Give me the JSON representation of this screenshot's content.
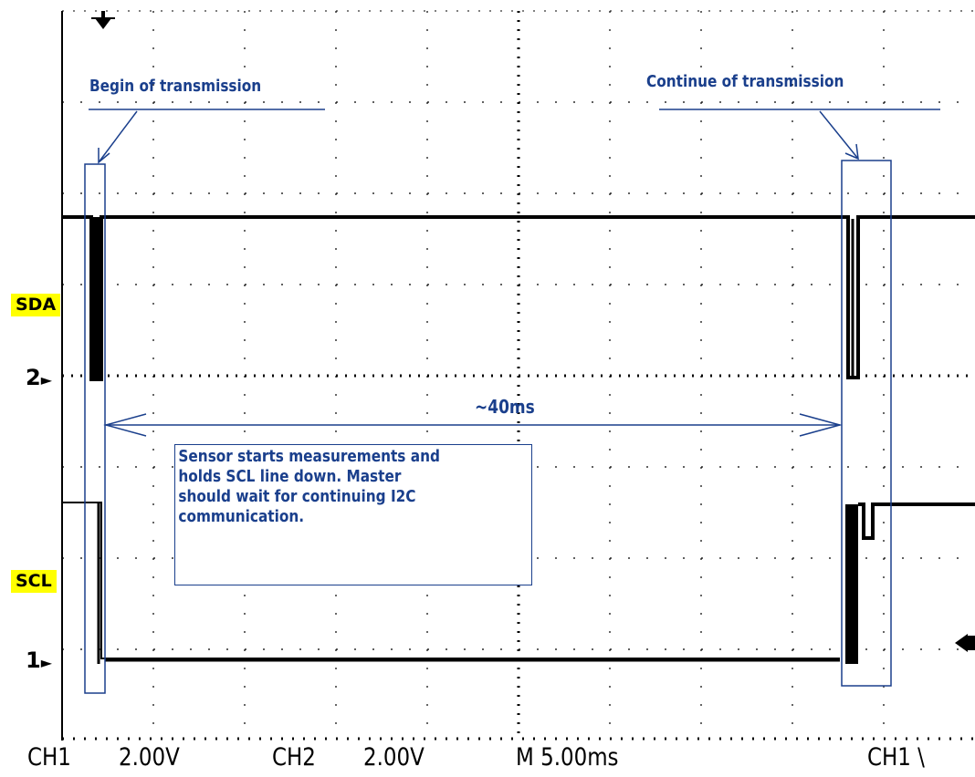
{
  "annotations": {
    "begin": "Begin of transmission",
    "continue": "Continue of transmission",
    "duration": "~40ms",
    "note": "Sensor starts measurements and\nholds SCL line down. Master\nshould wait for continuing I2C\ncommunication."
  },
  "channels": {
    "sda_label": "SDA",
    "scl_label": "SCL",
    "ch2_marker": "2",
    "ch1_marker": "1"
  },
  "status_bar": {
    "ch1": "CH1",
    "ch1_scale": "2.00V",
    "ch2": "CH2",
    "ch2_scale": "2.00V",
    "timebase": "M 5.00ms",
    "trigger": "CH1 \\"
  },
  "colors": {
    "trace": "#000000",
    "annotation": "#1a3f8c",
    "label_highlight": "#ffff00",
    "grid": "#000000"
  },
  "icons": {
    "trigger_position": "down-arrow-icon",
    "trigger_level": "left-arrow-icon",
    "channel_marker": "right-arrow-icon"
  }
}
